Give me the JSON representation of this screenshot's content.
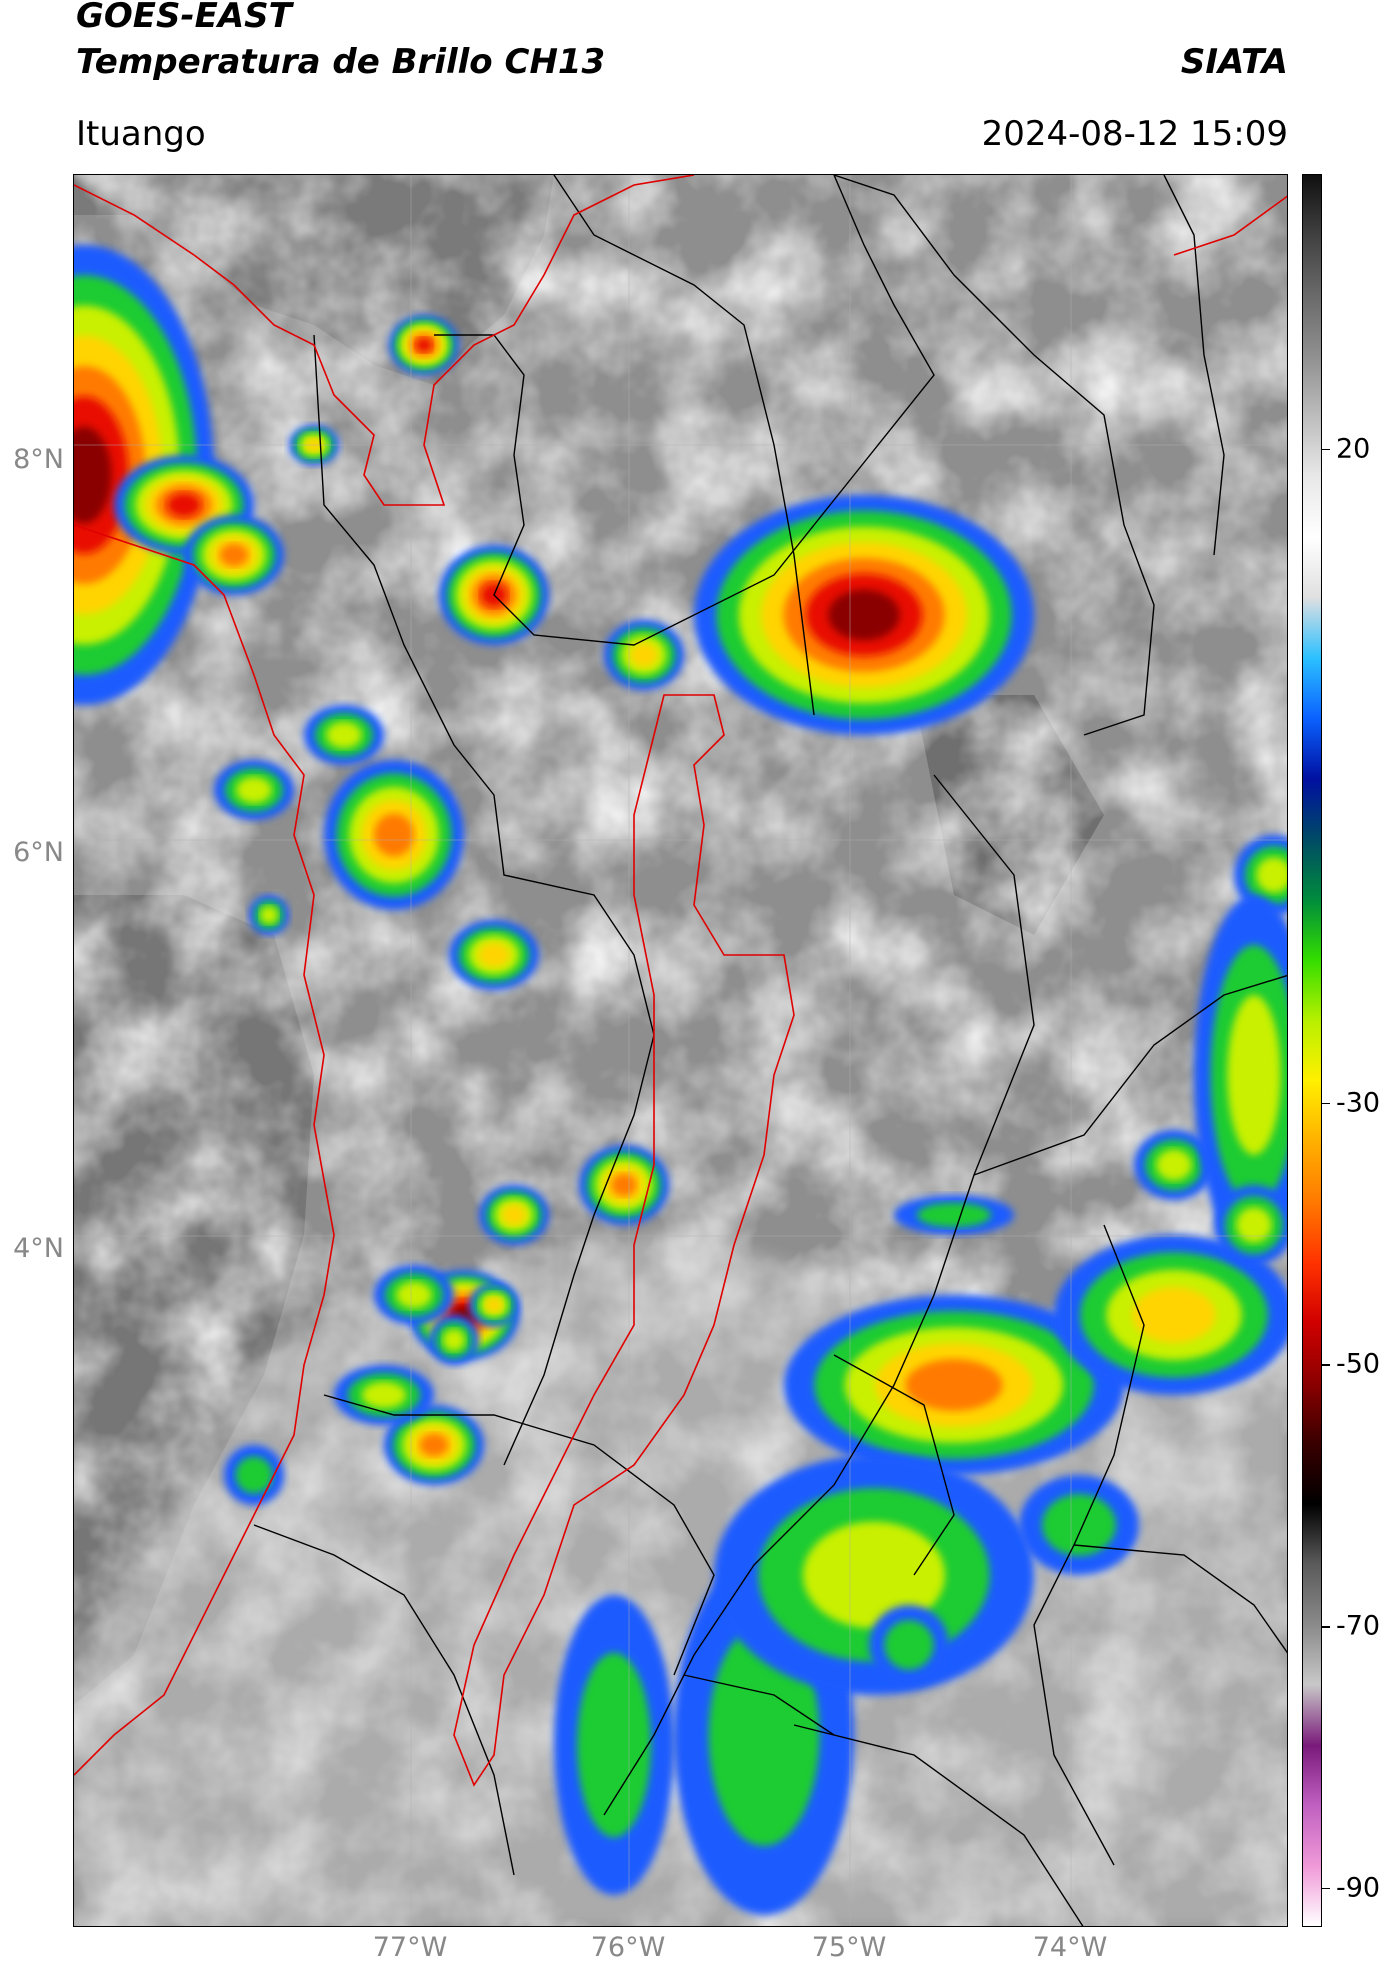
{
  "header": {
    "satellite": "GOES-EAST",
    "product": "Temperatura de Brillo CH13",
    "brand": "SIATA",
    "region": "Ituango",
    "timestamp": "2024-08-12 15:09"
  },
  "map": {
    "lat_labels": [
      "8°N",
      "6°N",
      "4°N"
    ],
    "lon_labels": [
      "77°W",
      "76°W",
      "75°W",
      "74°W"
    ],
    "lat_range": [
      1.5,
      9.5
    ],
    "lon_range": [
      -78.55,
      -72.95
    ],
    "colors": {
      "border": "#000000",
      "antioquia_outline": "#e00000",
      "coast": "#e00000"
    }
  },
  "colorbar": {
    "labels": [
      "20",
      "-30",
      "-50",
      "-70",
      "-90"
    ],
    "values": [
      20,
      -30,
      -50,
      -70,
      -90
    ],
    "range": [
      -93,
      41
    ],
    "colors": [
      "#ffffff",
      "#f09ad8",
      "#c060c0",
      "#7a1a7a",
      "#c8c8c8",
      "#8a8a8a",
      "#5a5a5a",
      "#000000",
      "#3a0000",
      "#8b0000",
      "#d10000",
      "#ff3300",
      "#ff7a00",
      "#ffb000",
      "#fff000",
      "#b8f000",
      "#33dd00",
      "#008c3c",
      "#004a66",
      "#0010a0",
      "#0b62ff",
      "#2bc0ff",
      "#e0e0e0",
      "#ffffff",
      "#e8e8e8",
      "#bdbdbd",
      "#8f8f8f",
      "#6a6a6a",
      "#404040",
      "#101010"
    ]
  }
}
